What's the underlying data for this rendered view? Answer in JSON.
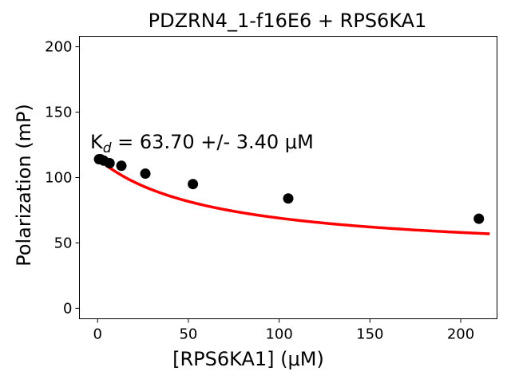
{
  "chart_data": {
    "type": "scatter",
    "title": "PDZRN4_1-f16E6 + RPS6KA1",
    "xlabel": "[RPS6KA1] (μM)",
    "ylabel": "Polarization (mP)",
    "xlim": [
      -10,
      220
    ],
    "ylim": [
      -8,
      208
    ],
    "xticks": [
      0,
      50,
      100,
      150,
      200
    ],
    "yticks": [
      0,
      50,
      100,
      150,
      200
    ],
    "annotation": {
      "prefix": "K",
      "subscript": "d",
      "text": " = 63.70 +/- 3.40 μM"
    },
    "series": [
      {
        "kind": "points",
        "color": "#000000",
        "x": [
          0.8,
          1.6,
          3.3,
          6.6,
          13.1,
          26.3,
          52.5,
          105,
          210
        ],
        "y": [
          114,
          114,
          113,
          111,
          109,
          103,
          95,
          84,
          68.5
        ]
      },
      {
        "kind": "fit-curve",
        "color": "#ff0000",
        "model": "one-site-binding",
        "params": {
          "top": 114.5,
          "bottom": 40,
          "kd": 63.7
        },
        "x_range": [
          0,
          216
        ]
      }
    ],
    "grid": false,
    "legend": "none"
  }
}
